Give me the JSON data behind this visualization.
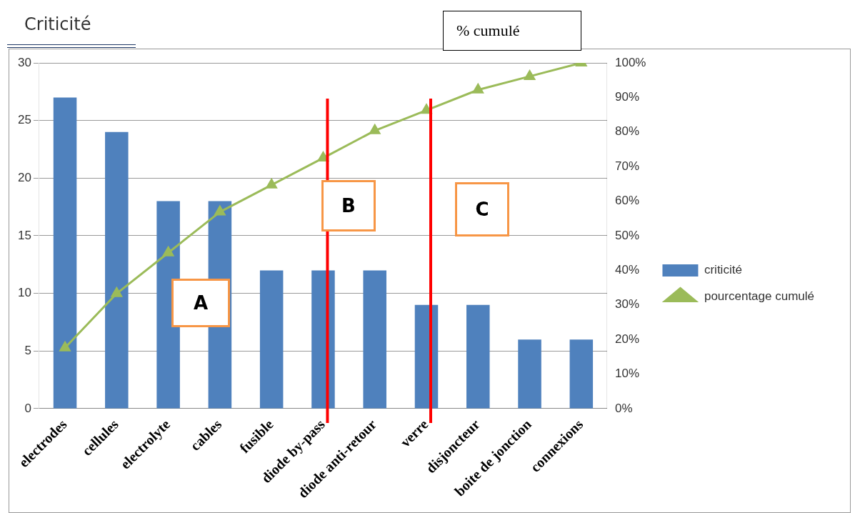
{
  "chart_data": {
    "type": "bar",
    "title": "Criticité",
    "y2label": "% cumulé",
    "categories": [
      "electrodes",
      "cellules",
      "electrolyte",
      "cables",
      "fusible",
      "diode by-pass",
      "diode anti-retour",
      "verre",
      "disjoncteur",
      "boite de jonction",
      "connexions"
    ],
    "series": [
      {
        "name": "criticité",
        "color": "#4f81bd",
        "values": [
          27,
          24,
          18,
          18,
          12,
          12,
          12,
          9,
          9,
          6,
          6
        ]
      },
      {
        "name": "pourcentage cumulé",
        "type": "line",
        "axis": "y2",
        "color": "#9bbb59",
        "marker": "triangle",
        "values": [
          17.6,
          33.3,
          45.1,
          56.9,
          64.7,
          72.5,
          80.4,
          86.3,
          92.2,
          96.1,
          100
        ]
      }
    ],
    "ylim": [
      0,
      30
    ],
    "yticks": [
      0,
      5,
      10,
      15,
      20,
      25,
      30
    ],
    "y2lim": [
      0,
      100
    ],
    "y2ticks": [
      {
        "value": 0,
        "label": "0%"
      },
      {
        "value": 10,
        "label": "10%"
      },
      {
        "value": 20,
        "label": "20%"
      },
      {
        "value": 30,
        "label": "30%"
      },
      {
        "value": 40,
        "label": "40%"
      },
      {
        "value": 50,
        "label": "50%"
      },
      {
        "value": 60,
        "label": "60%"
      },
      {
        "value": 70,
        "label": "70%"
      },
      {
        "value": 80,
        "label": "80%"
      },
      {
        "value": 90,
        "label": "90%"
      },
      {
        "value": 100,
        "label": "100%"
      }
    ],
    "ref_lines": [
      {
        "axis": "x",
        "value": "diode by-pass",
        "color": "#ff0000"
      },
      {
        "axis": "x",
        "value": "verre",
        "color": "#ff0000"
      }
    ],
    "annotations": [
      "A",
      "B",
      "C"
    ],
    "grid": "y",
    "legend": "right"
  }
}
